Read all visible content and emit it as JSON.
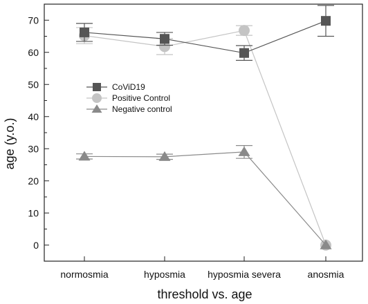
{
  "chart_data": {
    "type": "line",
    "title": "",
    "xlabel": "threshold vs. age",
    "ylabel": "age (y.o.)",
    "categories": [
      "normosmia",
      "hyposmia",
      "hyposmia severa",
      "anosmia"
    ],
    "ylim": [
      -5,
      75
    ],
    "yticks": [
      0,
      10,
      20,
      30,
      40,
      50,
      60,
      70
    ],
    "grid": false,
    "legend_position": "center-left",
    "series": [
      {
        "name": "CoViD19",
        "marker": "square",
        "color": "#555555",
        "values": [
          66.2,
          64.2,
          59.8,
          69.8
        ],
        "errors": [
          2.8,
          2.0,
          2.3,
          4.8
        ]
      },
      {
        "name": "Positive Control",
        "marker": "circle",
        "color": "#c4c4c4",
        "values": [
          65.2,
          61.8,
          66.8,
          0
        ],
        "errors": [
          2.5,
          2.5,
          1.5,
          0
        ]
      },
      {
        "name": "Negative control",
        "marker": "triangle",
        "color": "#8a8a8a",
        "values": [
          27.6,
          27.5,
          29.0,
          0
        ],
        "errors": [
          0.8,
          0.8,
          2.0,
          0
        ]
      }
    ]
  }
}
